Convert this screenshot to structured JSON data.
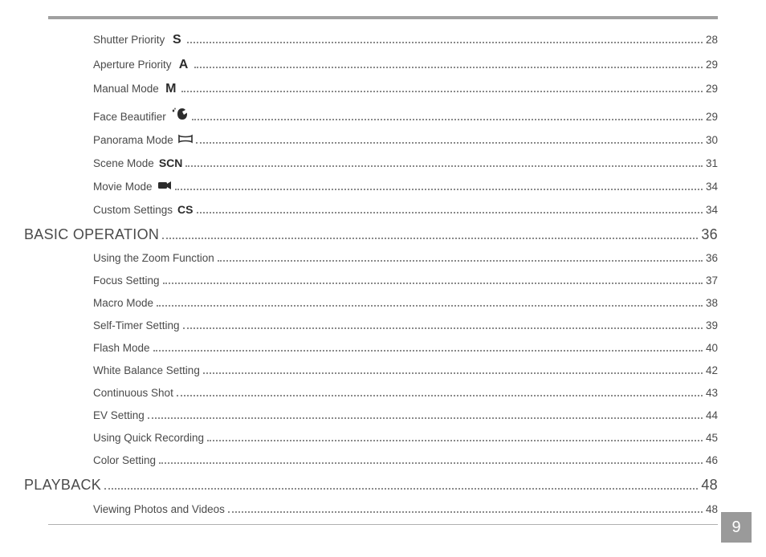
{
  "colors": {
    "rule": "#a0a0a0",
    "bottom_rule": "#b0b0b0",
    "text": "#4a4a4a",
    "icon": "#2c2c2c",
    "pagenum_bg": "#9a9a9a",
    "pagenum_fg": "#ffffff",
    "dots": "#8a8a8a",
    "background": "#ffffff"
  },
  "typography": {
    "body_font_size_pt": 10,
    "section_font_size_pt": 14,
    "font_family": "Arial"
  },
  "page_number": "9",
  "toc": [
    {
      "label": "Shutter Priority",
      "page": "28",
      "level": 1,
      "icon": "S"
    },
    {
      "label": "Aperture Priority",
      "page": "29",
      "level": 1,
      "icon": "A"
    },
    {
      "label": "Manual Mode",
      "page": "29",
      "level": 1,
      "icon": "M"
    },
    {
      "label": "Face Beautifier",
      "page": "29",
      "level": 1,
      "icon": "face-beautifier-icon"
    },
    {
      "label": "Panorama Mode",
      "page": "30",
      "level": 1,
      "icon": "panorama-icon"
    },
    {
      "label": "Scene Mode",
      "page": "31",
      "level": 1,
      "icon": "SCN"
    },
    {
      "label": "Movie Mode",
      "page": "34",
      "level": 1,
      "icon": "movie-icon"
    },
    {
      "label": "Custom Settings",
      "page": "34",
      "level": 1,
      "icon": "CS"
    },
    {
      "label": "BASIC OPERATION",
      "page": "36",
      "level": 0,
      "icon": null
    },
    {
      "label": "Using the Zoom Function",
      "page": "36",
      "level": 1,
      "icon": null
    },
    {
      "label": "Focus Setting",
      "page": "37",
      "level": 1,
      "icon": null
    },
    {
      "label": "Macro Mode",
      "page": "38",
      "level": 1,
      "icon": null
    },
    {
      "label": "Self-Timer Setting",
      "page": "39",
      "level": 1,
      "icon": null
    },
    {
      "label": "Flash Mode",
      "page": "40",
      "level": 1,
      "icon": null
    },
    {
      "label": "White Balance Setting",
      "page": "42",
      "level": 1,
      "icon": null
    },
    {
      "label": "Continuous Shot",
      "page": "43",
      "level": 1,
      "icon": null
    },
    {
      "label": "EV Setting",
      "page": "44",
      "level": 1,
      "icon": null
    },
    {
      "label": "Using Quick Recording",
      "page": "45",
      "level": 1,
      "icon": null
    },
    {
      "label": "Color Setting",
      "page": "46",
      "level": 1,
      "icon": null
    },
    {
      "label": "PLAYBACK",
      "page": "48",
      "level": 0,
      "icon": null
    },
    {
      "label": "Viewing Photos and Videos",
      "page": "48",
      "level": 1,
      "icon": null
    }
  ]
}
